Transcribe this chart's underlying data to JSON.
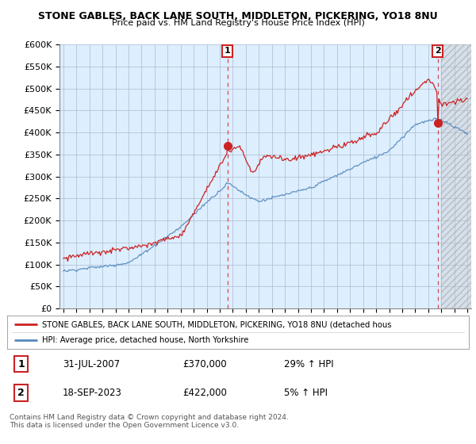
{
  "title1": "STONE GABLES, BACK LANE SOUTH, MIDDLETON, PICKERING, YO18 8NU",
  "title2": "Price paid vs. HM Land Registry's House Price Index (HPI)",
  "ylim": [
    0,
    600000
  ],
  "yticks": [
    0,
    50000,
    100000,
    150000,
    200000,
    250000,
    300000,
    350000,
    400000,
    450000,
    500000,
    550000,
    600000
  ],
  "ytick_labels": [
    "£0",
    "£50K",
    "£100K",
    "£150K",
    "£200K",
    "£250K",
    "£300K",
    "£350K",
    "£400K",
    "£450K",
    "£500K",
    "£550K",
    "£600K"
  ],
  "hpi_color": "#5588bb",
  "price_color": "#cc2222",
  "plot_bg_color": "#ddeeff",
  "hatch_bg_color": "#dddddd",
  "marker1_date": 2007.58,
  "marker1_price": 370000,
  "marker2_date": 2023.72,
  "marker2_price": 422000,
  "hatch_start": 2024.0,
  "xlim_left": 1994.7,
  "xlim_right": 2026.3,
  "legend_line1": "STONE GABLES, BACK LANE SOUTH, MIDDLETON, PICKERING, YO18 8NU (detached hous",
  "legend_line2": "HPI: Average price, detached house, North Yorkshire",
  "table_row1": [
    "1",
    "31-JUL-2007",
    "£370,000",
    "29% ↑ HPI"
  ],
  "table_row2": [
    "2",
    "18-SEP-2023",
    "£422,000",
    "5% ↑ HPI"
  ],
  "footer": "Contains HM Land Registry data © Crown copyright and database right 2024.\nThis data is licensed under the Open Government Licence v3.0.",
  "background_color": "#ffffff",
  "grid_color": "#aabbcc"
}
